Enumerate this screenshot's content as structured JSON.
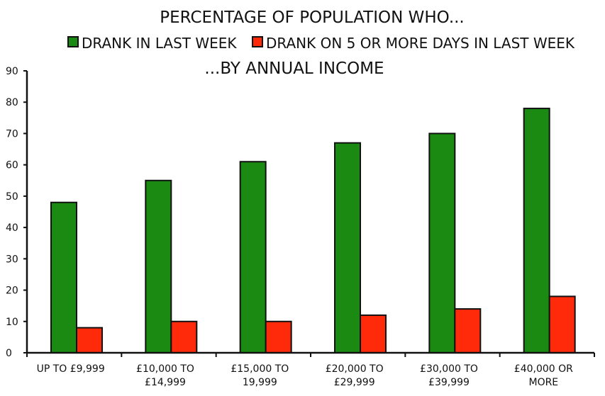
{
  "chart_data": {
    "type": "bar",
    "title": "PERCENTAGE OF POPULATION WHO...",
    "subtitle": "...BY ANNUAL INCOME",
    "categories": [
      [
        "UP TO £9,999"
      ],
      [
        "£10,000 TO",
        "£14,999"
      ],
      [
        "£15,000 TO",
        "19,999"
      ],
      [
        "£20,000 TO",
        "£29,999"
      ],
      [
        "£30,000 TO",
        "£39,999"
      ],
      [
        "£40,000 OR",
        "MORE"
      ]
    ],
    "series": [
      {
        "name": "DRANK IN LAST WEEK",
        "color": "#1a8a12",
        "values": [
          48,
          55,
          61,
          67,
          70,
          78
        ]
      },
      {
        "name": "DRANK ON 5 OR MORE DAYS IN LAST WEEK",
        "color": "#ff2a0a",
        "values": [
          8,
          10,
          10,
          12,
          14,
          18
        ]
      }
    ],
    "ylim": [
      0,
      90
    ],
    "yticks": [
      "0",
      "10",
      "20",
      "30",
      "40",
      "50",
      "60",
      "70",
      "80",
      "90"
    ],
    "grid": false,
    "legend_position": "top"
  }
}
